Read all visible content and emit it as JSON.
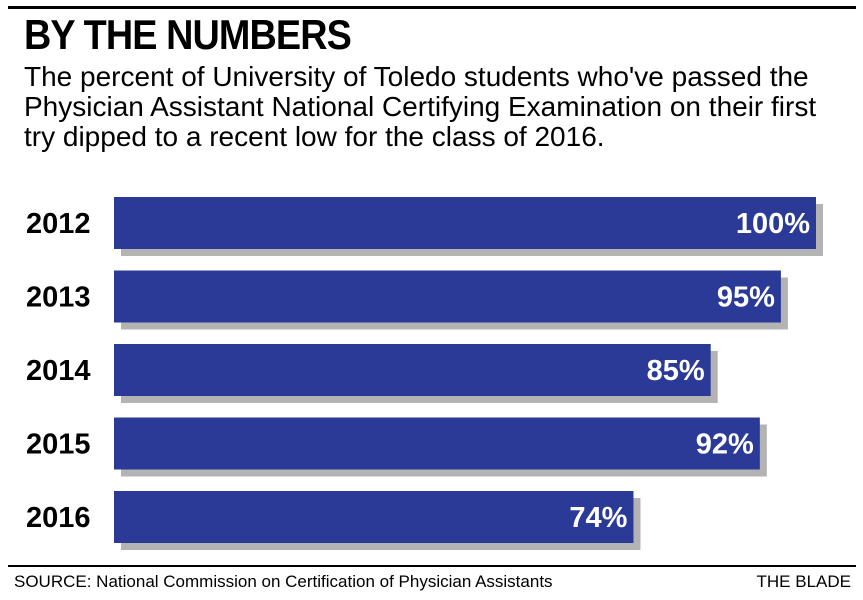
{
  "headline": "BY THE NUMBERS",
  "subhead": "The percent of University of Toledo students who've passed the Physician Assistant National Certifying Examination on their first try dipped to a recent low for the class of 2016.",
  "source": "SOURCE: National Commission on Certification of Physician Assistants",
  "credit": "THE BLADE",
  "colors": {
    "bar": "#2b3a96",
    "shadow": "#b3b3b3",
    "bar_text": "#ffffff",
    "text": "#000000"
  },
  "chart_data": {
    "type": "bar",
    "orientation": "horizontal",
    "categories": [
      "2012",
      "2013",
      "2014",
      "2015",
      "2016"
    ],
    "values": [
      100,
      95,
      85,
      92,
      74
    ],
    "value_labels": [
      "100%",
      "95%",
      "85%",
      "92%",
      "74%"
    ],
    "xlim": [
      0,
      100
    ],
    "title": "BY THE NUMBERS",
    "xlabel": "",
    "ylabel": "",
    "grid": false,
    "legend": "none"
  }
}
